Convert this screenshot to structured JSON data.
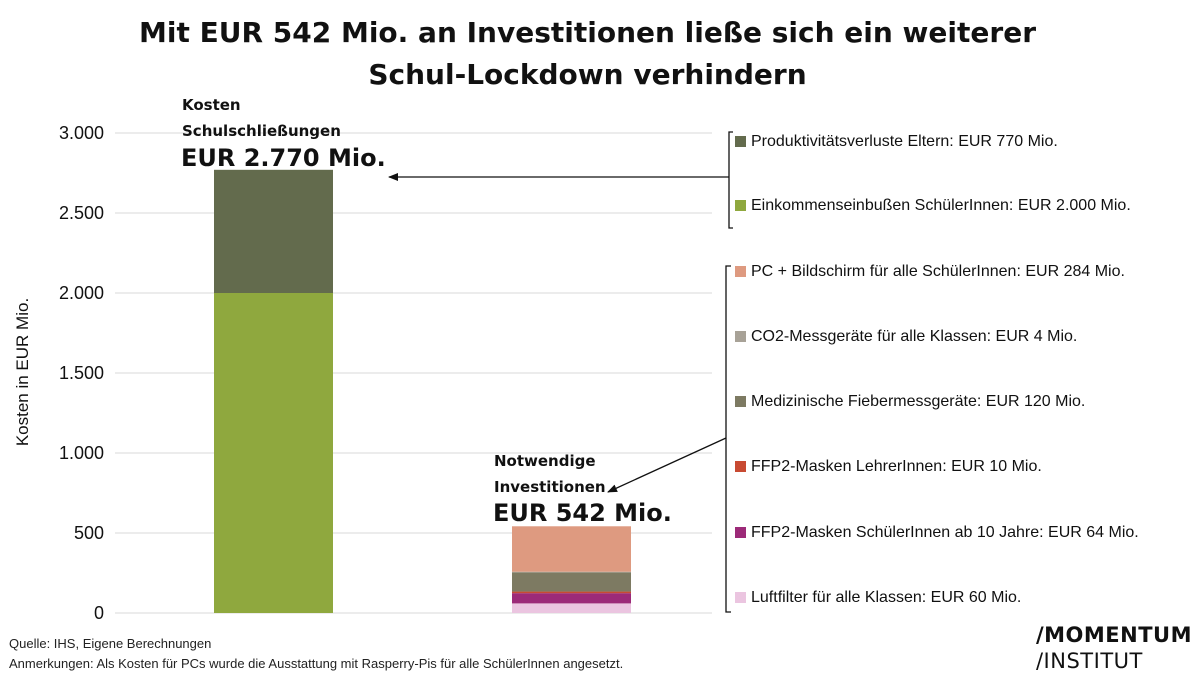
{
  "title": {
    "line1": "Mit EUR 542 Mio. an Investitionen ließe sich ein weiterer",
    "line2": "Schul-Lockdown verhindern"
  },
  "chart_data": {
    "type": "bar",
    "stacked": true,
    "ylabel": "Kosten in EUR Mio.",
    "ylim": [
      0,
      3000
    ],
    "yticks": [
      0,
      500,
      1000,
      1500,
      2000,
      2500,
      3000
    ],
    "ytick_labels": [
      "0",
      "500",
      "1.000",
      "1.500",
      "2.000",
      "2.500",
      "3.000"
    ],
    "grid": true,
    "categories": [
      "Kosten Schulschließungen",
      "Notwendige Investitionen"
    ],
    "series": [
      {
        "name": "Einkommenseinbußen SchülerInnen",
        "category": 0,
        "value": 2000,
        "color": "#8FA83E",
        "legend": "Einkommenseinbußen SchülerInnen: EUR 2.000 Mio."
      },
      {
        "name": "Produktivitätsverluste Eltern",
        "category": 0,
        "value": 770,
        "color": "#636B4D",
        "legend": "Produktivitätsverluste Eltern: EUR 770 Mio."
      },
      {
        "name": "Luftfilter für alle Klassen",
        "category": 1,
        "value": 60,
        "color": "#EBC5E0",
        "legend": "Luftfilter für alle Klassen: EUR 60 Mio."
      },
      {
        "name": "FFP2-Masken SchülerInnen ab 10 Jahre",
        "category": 1,
        "value": 64,
        "color": "#9C2A78",
        "legend": "FFP2-Masken SchülerInnen ab 10 Jahre: EUR 64 Mio."
      },
      {
        "name": "FFP2-Masken LehrerInnen",
        "category": 1,
        "value": 10,
        "color": "#C84A32",
        "legend": "FFP2-Masken LehrerInnen: EUR 10 Mio."
      },
      {
        "name": "Medizinische Fiebermessgeräte",
        "category": 1,
        "value": 120,
        "color": "#7D7A62",
        "legend": "Medizinische Fiebermessgeräte: EUR 120 Mio."
      },
      {
        "name": "CO2-Messgeräte für alle Klassen",
        "category": 1,
        "value": 4,
        "color": "#A8A297",
        "legend": "CO2-Messgeräte für alle Klassen: EUR 4 Mio."
      },
      {
        "name": "PC + Bildschirm für alle SchülerInnen",
        "category": 1,
        "value": 284,
        "color": "#DE9A80",
        "legend": "PC + Bildschirm für alle SchülerInnen: EUR 284 Mio."
      }
    ],
    "annotations": {
      "costs": {
        "line1": "Kosten",
        "line2": "Schulschließungen",
        "total": "EUR 2.770 Mio."
      },
      "investments": {
        "line1": "Notwendige",
        "line2": "Investitionen",
        "total": "EUR 542 Mio."
      }
    },
    "legend_groups": {
      "costs": [
        "Produktivitätsverluste Eltern",
        "Einkommenseinbußen SchülerInnen"
      ],
      "investments": [
        "PC + Bildschirm für alle SchülerInnen",
        "CO2-Messgeräte für alle Klassen",
        "Medizinische Fiebermessgeräte",
        "FFP2-Masken LehrerInnen",
        "FFP2-Masken SchülerInnen ab 10 Jahre",
        "Luftfilter für alle Klassen"
      ]
    }
  },
  "footer": {
    "source": "Quelle: IHS, Eigene Berechnungen",
    "notes": "Anmerkungen: Als Kosten für PCs wurde die Ausstattung mit Rasperry-Pis für alle SchülerInnen angesetzt."
  },
  "logo": {
    "line1": "/MOMENTUM",
    "line2": "/INSTITUT"
  }
}
